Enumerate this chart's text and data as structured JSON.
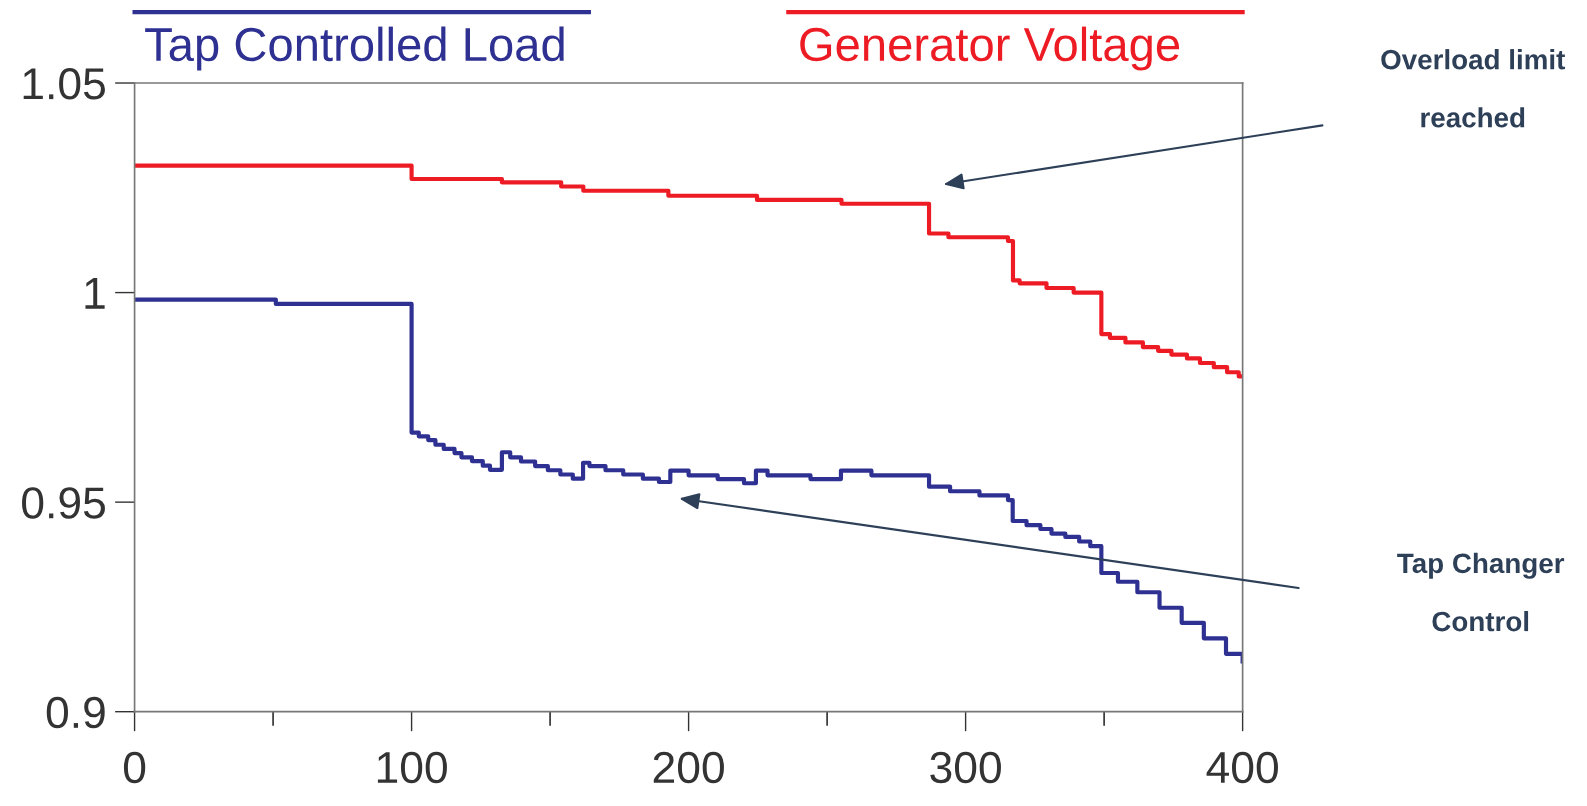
{
  "chart_data": {
    "type": "step",
    "legend": "top",
    "marker": "none",
    "line_style": "solid",
    "grid": false,
    "xlim": [
      0,
      400
    ],
    "ylim": [
      0.9,
      1.05
    ],
    "xticks": [
      0,
      {
        "value": 50,
        "label": null
      },
      100,
      {
        "value": 150,
        "label": null
      },
      200,
      {
        "value": 250,
        "label": null
      },
      300,
      {
        "value": 350,
        "label": null
      },
      400
    ],
    "yticks": [
      0.9,
      0.95,
      1,
      1.05
    ],
    "series": [
      {
        "name": "Tap Controlled Load",
        "color": "#2e3192",
        "x": [
          0,
          51,
          100,
          102.6,
          106,
          108.6,
          111.6,
          115.5,
          118,
          121.8,
          125.7,
          128.3,
          132.6,
          135.6,
          139.5,
          144.6,
          149.2,
          153.7,
          158.2,
          161.9,
          164.2,
          170,
          176.4,
          183.5,
          189.3,
          193.4,
          200,
          210.5,
          220,
          224.3,
          228.5,
          244,
          255,
          266,
          286.8,
          294.4,
          305,
          315.3,
          317,
          322,
          327,
          331,
          336,
          341,
          345,
          349,
          355,
          362,
          370,
          378,
          386,
          394,
          400
        ],
        "values": [
          0.9983,
          0.9973,
          0.9666,
          0.9657,
          0.9648,
          0.9637,
          0.9627,
          0.9617,
          0.9607,
          0.9598,
          0.9587,
          0.9577,
          0.9619,
          0.9607,
          0.9597,
          0.9586,
          0.9576,
          0.9566,
          0.9556,
          0.9594,
          0.9586,
          0.9576,
          0.9566,
          0.9556,
          0.9548,
          0.9575,
          0.9564,
          0.9555,
          0.9545,
          0.9575,
          0.9564,
          0.9555,
          0.9575,
          0.9564,
          0.9537,
          0.9526,
          0.9516,
          0.9505,
          0.9455,
          0.9445,
          0.9436,
          0.9425,
          0.9417,
          0.9406,
          0.9395,
          0.9331,
          0.931,
          0.9285,
          0.9248,
          0.9212,
          0.9175,
          0.9138,
          0.912
        ]
      },
      {
        "name": "Generator Voltage",
        "color": "#ed1c24",
        "x": [
          0,
          100,
          132.6,
          154,
          162,
          192.7,
          224.7,
          255.2,
          286.8,
          293.8,
          315.3,
          317.1,
          319.5,
          329.2,
          339,
          349,
          352.1,
          357.7,
          364,
          369.5,
          374.3,
          379.9,
          384.6,
          389.6,
          394.4,
          398.6,
          400
        ],
        "values": [
          1.0303,
          1.0271,
          1.0263,
          1.0253,
          1.0243,
          1.0231,
          1.0221,
          1.0212,
          1.0141,
          1.0132,
          1.0123,
          1.0029,
          1.0022,
          1.0011,
          1.0,
          0.9901,
          0.9892,
          0.9881,
          0.987,
          0.9861,
          0.9852,
          0.9843,
          0.9832,
          0.9822,
          0.981,
          0.98,
          0.98
        ]
      }
    ],
    "annotations": [
      "Overload limit\nreached",
      "Tap Changer\nControl"
    ]
  }
}
